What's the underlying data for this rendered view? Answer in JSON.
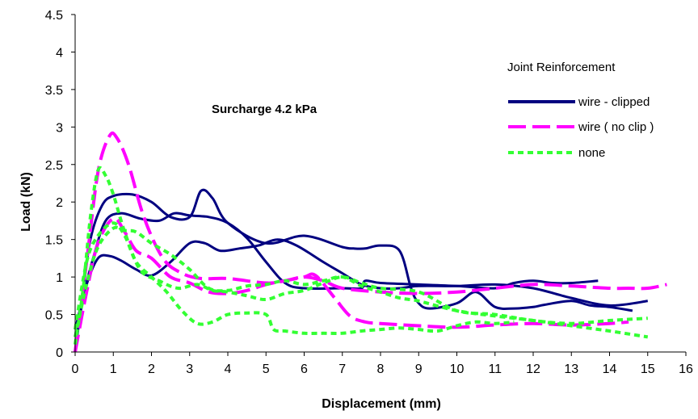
{
  "chart_data": {
    "type": "line",
    "title": "",
    "annotation": "Surcharge 4.2 kPa",
    "xlabel": "Displacement (mm)",
    "ylabel": "Load (kN)",
    "xlim": [
      0,
      16
    ],
    "ylim": [
      0,
      4.5
    ],
    "xticks": [
      0,
      1,
      2,
      3,
      4,
      5,
      6,
      7,
      8,
      9,
      10,
      11,
      12,
      13,
      14,
      15,
      16
    ],
    "yticks": [
      0,
      0.5,
      1,
      1.5,
      2,
      2.5,
      3,
      3.5,
      4,
      4.5
    ],
    "xtick_labels": [
      "0",
      "1",
      "2",
      "3",
      "4",
      "5",
      "6",
      "7",
      "8",
      "9",
      "10",
      "11",
      "12",
      "13",
      "14",
      "15",
      "16"
    ],
    "ytick_labels": [
      "0",
      "0.5",
      "1",
      "1.5",
      "2",
      "2.5",
      "3",
      "3.5",
      "4",
      "4.5"
    ],
    "grid": false,
    "legend": {
      "title": "Joint Reinforcement",
      "placement": "right",
      "entries": [
        "wire - clipped",
        "wire ( no clip )",
        "none"
      ]
    },
    "colors": {
      "wire_clipped": "#000080",
      "wire_no_clip": "#ff00ff",
      "none": "#33ff33"
    },
    "series": [
      {
        "name": "wire - clipped",
        "style": "solid",
        "color": "#000080",
        "x": [
          0,
          0.2,
          0.4,
          0.7,
          1.0,
          1.5,
          2.0,
          2.5,
          3.0,
          3.3,
          3.6,
          4.0,
          5.0,
          6.0,
          7.0,
          7.3,
          7.6,
          8.0,
          8.5,
          8.8,
          9.0,
          9.3,
          10.0,
          10.5,
          11.0,
          11.5,
          12.0,
          12.3,
          13.0,
          13.5,
          14.0,
          14.6
        ],
        "y": [
          0,
          0.8,
          1.5,
          1.95,
          2.08,
          2.1,
          2.0,
          1.8,
          1.8,
          2.15,
          2.05,
          1.72,
          1.45,
          1.55,
          1.4,
          1.38,
          1.38,
          1.42,
          1.35,
          0.85,
          0.65,
          0.58,
          0.65,
          0.8,
          0.6,
          0.58,
          0.6,
          0.63,
          0.68,
          0.62,
          0.6,
          0.55
        ]
      },
      {
        "name": "wire - clipped",
        "style": "solid",
        "color": "#000080",
        "x": [
          0,
          0.2,
          0.5,
          0.8,
          1.2,
          1.7,
          2.2,
          2.6,
          3.0,
          3.5,
          4.0,
          4.5,
          5.0,
          5.5,
          6.0,
          7.0,
          7.5,
          7.6,
          8.0,
          9.0,
          10.0,
          11.0,
          11.5,
          12.0,
          12.5,
          13.0,
          13.7
        ],
        "y": [
          0,
          0.7,
          1.3,
          1.75,
          1.85,
          1.78,
          1.75,
          1.85,
          1.82,
          1.8,
          1.72,
          1.52,
          1.2,
          0.92,
          0.85,
          0.85,
          0.85,
          0.95,
          0.92,
          0.9,
          0.88,
          0.85,
          0.92,
          0.95,
          0.92,
          0.92,
          0.95
        ]
      },
      {
        "name": "wire - clipped",
        "style": "solid",
        "color": "#000080",
        "x": [
          0,
          0.3,
          0.6,
          0.9,
          1.2,
          1.6,
          2.0,
          2.5,
          3.0,
          3.4,
          3.8,
          4.3,
          4.8,
          5.3,
          5.8,
          6.5,
          7.0,
          7.5,
          8.0,
          8.5,
          9.0,
          10.0,
          11.0,
          12.0,
          13.0,
          14.0,
          15.0
        ],
        "y": [
          0.3,
          0.9,
          1.25,
          1.28,
          1.22,
          1.1,
          1.02,
          1.2,
          1.45,
          1.45,
          1.35,
          1.38,
          1.42,
          1.5,
          1.42,
          1.2,
          1.05,
          0.9,
          0.85,
          0.85,
          0.88,
          0.88,
          0.9,
          0.85,
          0.72,
          0.62,
          0.68
        ]
      },
      {
        "name": "wire ( no clip )",
        "style": "longdash",
        "color": "#ff00ff",
        "x": [
          0,
          0.3,
          0.6,
          0.9,
          1.1,
          1.4,
          1.8,
          2.3,
          2.8,
          3.3,
          4.0,
          5.0,
          5.5,
          6.0,
          6.5,
          7.0,
          8.0,
          9.0,
          10.0,
          11.0,
          12.0,
          13.0,
          14.0,
          14.5,
          15.0,
          15.5
        ],
        "y": [
          0,
          1.2,
          2.4,
          2.88,
          2.85,
          2.5,
          1.8,
          1.25,
          1.05,
          0.98,
          0.98,
          0.92,
          0.95,
          1.0,
          0.95,
          0.85,
          0.8,
          0.78,
          0.8,
          0.85,
          0.9,
          0.88,
          0.85,
          0.85,
          0.85,
          0.9
        ]
      },
      {
        "name": "wire ( no clip )",
        "style": "longdash",
        "color": "#ff00ff",
        "x": [
          0,
          0.3,
          0.6,
          1.0,
          1.3,
          1.6,
          2.0,
          2.5,
          3.0,
          3.5,
          4.0,
          4.5,
          5.0,
          5.5,
          6.0,
          6.3,
          6.8,
          7.2,
          7.6,
          8.0,
          9.0,
          10.0,
          11.0,
          12.0,
          13.0,
          14.0,
          14.5
        ],
        "y": [
          0,
          0.8,
          1.45,
          1.78,
          1.6,
          1.35,
          1.25,
          1.0,
          0.92,
          0.8,
          0.78,
          0.82,
          0.9,
          0.95,
          1.0,
          1.02,
          0.72,
          0.48,
          0.4,
          0.38,
          0.35,
          0.33,
          0.36,
          0.38,
          0.36,
          0.38,
          0.4
        ]
      },
      {
        "name": "none",
        "style": "shortdash",
        "color": "#33ff33",
        "x": [
          0,
          0.2,
          0.4,
          0.6,
          0.8,
          1.0,
          1.3,
          1.7,
          2.2,
          2.7,
          3.2,
          3.6,
          4.0,
          4.5,
          5.0,
          5.5,
          6.0,
          6.5,
          7.0,
          7.5,
          8.0,
          9.0,
          10.0,
          11.0,
          12.0,
          13.0,
          14.0,
          15.0
        ],
        "y": [
          0.1,
          0.8,
          1.8,
          2.42,
          2.35,
          2.1,
          1.6,
          1.1,
          0.95,
          0.85,
          0.9,
          0.82,
          0.8,
          0.75,
          0.7,
          0.78,
          0.82,
          0.92,
          1.0,
          0.92,
          0.85,
          0.8,
          0.55,
          0.5,
          0.42,
          0.38,
          0.42,
          0.45
        ]
      },
      {
        "name": "none",
        "style": "shortdash",
        "color": "#33ff33",
        "x": [
          0,
          0.3,
          0.6,
          1.0,
          1.3,
          1.6,
          2.0,
          2.5,
          3.0,
          3.5,
          4.0,
          4.5,
          5.0,
          5.5,
          6.0,
          6.5,
          7.0,
          7.5,
          8.0,
          8.5,
          9.0,
          10.0,
          11.0,
          12.0,
          13.0,
          14.0,
          15.0
        ],
        "y": [
          0.2,
          0.9,
          1.4,
          1.65,
          1.62,
          1.6,
          1.45,
          1.3,
          1.1,
          0.85,
          0.82,
          0.88,
          0.9,
          0.95,
          0.9,
          0.95,
          1.0,
          0.88,
          0.8,
          0.72,
          0.68,
          0.55,
          0.48,
          0.42,
          0.35,
          0.28,
          0.2
        ]
      },
      {
        "name": "none",
        "style": "shortdash",
        "color": "#33ff33",
        "x": [
          0,
          0.3,
          0.6,
          1.0,
          1.3,
          1.6,
          2.0,
          2.4,
          2.8,
          3.2,
          3.6,
          4.0,
          4.5,
          5.0,
          5.2,
          5.5,
          6.0,
          6.5,
          7.0,
          7.5,
          8.0,
          8.5,
          9.0,
          9.5,
          10.0,
          10.5,
          11.0,
          11.5
        ],
        "y": [
          0.3,
          1.2,
          1.55,
          1.72,
          1.55,
          1.2,
          1.0,
          0.8,
          0.55,
          0.38,
          0.4,
          0.5,
          0.52,
          0.5,
          0.3,
          0.28,
          0.25,
          0.25,
          0.25,
          0.28,
          0.3,
          0.32,
          0.3,
          0.28,
          0.35,
          0.4,
          0.38,
          0.4
        ]
      }
    ]
  }
}
